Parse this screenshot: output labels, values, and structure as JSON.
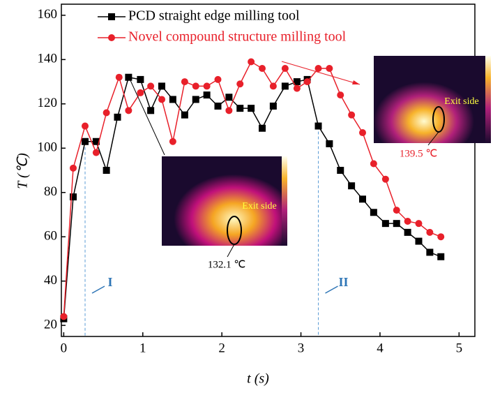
{
  "chart_data": {
    "type": "line",
    "xlabel": "t (s)",
    "ylabel": "T (℃)",
    "xlim": [
      -0.03,
      5.2
    ],
    "ylim": [
      15,
      165
    ],
    "xticks": [
      0,
      1,
      2,
      3,
      4,
      5
    ],
    "yticks": [
      20,
      40,
      60,
      80,
      100,
      120,
      140,
      160
    ],
    "legend": "upper left",
    "series": [
      {
        "name": "PCD straight edge milling tool",
        "color": "#000000",
        "marker": "square",
        "x": [
          0,
          0.12,
          0.27,
          0.41,
          0.54,
          0.68,
          0.82,
          0.97,
          1.1,
          1.24,
          1.38,
          1.53,
          1.67,
          1.81,
          1.95,
          2.09,
          2.23,
          2.37,
          2.51,
          2.65,
          2.8,
          2.95,
          3.08,
          3.22,
          3.36,
          3.5,
          3.64,
          3.78,
          3.92,
          4.07,
          4.21,
          4.35,
          4.49,
          4.63,
          4.77
        ],
        "values": [
          23,
          78,
          103,
          103,
          90,
          114,
          132,
          131,
          117,
          128,
          122,
          115,
          122,
          124,
          119,
          123,
          118,
          118,
          109,
          119,
          128,
          130,
          131,
          110,
          102,
          90,
          83,
          77,
          71,
          66,
          66,
          62,
          58,
          53,
          51
        ]
      },
      {
        "name": "Novel compound structure milling tool",
        "color": "#e8202a",
        "marker": "circle",
        "x": [
          0,
          0.12,
          0.27,
          0.41,
          0.54,
          0.7,
          0.82,
          0.97,
          1.1,
          1.24,
          1.38,
          1.53,
          1.67,
          1.81,
          1.95,
          2.09,
          2.23,
          2.37,
          2.51,
          2.65,
          2.8,
          2.95,
          3.08,
          3.22,
          3.36,
          3.5,
          3.64,
          3.78,
          3.92,
          4.07,
          4.21,
          4.35,
          4.49,
          4.63,
          4.77
        ],
        "values": [
          24,
          91,
          110,
          98,
          116,
          132,
          117,
          125,
          128,
          122,
          103,
          130,
          128,
          128,
          131,
          117,
          129,
          139,
          136,
          128,
          136,
          127,
          130,
          136,
          136,
          124,
          115,
          107,
          93,
          86,
          72,
          67,
          66,
          62,
          60
        ]
      }
    ],
    "phase_markers": [
      {
        "x": 0.27,
        "label": "I"
      },
      {
        "x": 3.22,
        "label": "II"
      }
    ],
    "insets": [
      {
        "label": "Exit side",
        "temperature": "132.1 ℃"
      },
      {
        "label": "Exit side",
        "temperature": "139.5 ℃"
      }
    ]
  }
}
